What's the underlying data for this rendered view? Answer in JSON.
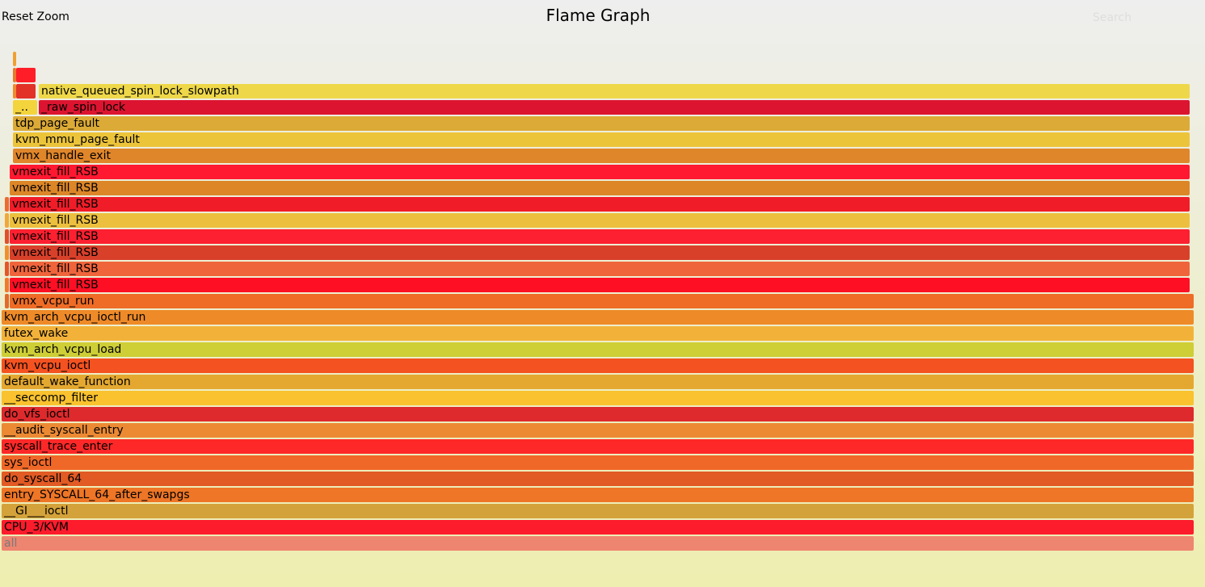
{
  "toolbar": {
    "reset_zoom_label": "Reset Zoom",
    "title": "Flame Graph",
    "search_label": "Search"
  },
  "frames": [
    {
      "name": "all",
      "label": "all",
      "color": "#ee8570"
    },
    {
      "name": "CPU_3/KVM",
      "label": "CPU_3/KVM",
      "color": "#fc1c2c"
    },
    {
      "name": "__GI___ioctl",
      "label": "__GI___ioctl",
      "color": "#d4a23a"
    },
    {
      "name": "entry_SYSCALL_64_after_swapgs",
      "label": "entry_SYSCALL_64_after_swapgs",
      "color": "#ee7626"
    },
    {
      "name": "do_syscall_64",
      "label": "do_syscall_64",
      "color": "#e25a24"
    },
    {
      "name": "sys_ioctl",
      "label": "sys_ioctl",
      "color": "#f06828"
    },
    {
      "name": "syscall_trace_enter",
      "label": "syscall_trace_enter",
      "color": "#ff2828"
    },
    {
      "name": "__audit_syscall_entry",
      "label": "__audit_syscall_entry",
      "color": "#ec8a34"
    },
    {
      "name": "do_vfs_ioctl",
      "label": "do_vfs_ioctl",
      "color": "#de2a2c"
    },
    {
      "name": "__seccomp_filter",
      "label": "__seccomp_filter",
      "color": "#f9c22e"
    },
    {
      "name": "default_wake_function",
      "label": "default_wake_function",
      "color": "#e4a830"
    },
    {
      "name": "kvm_vcpu_ioctl",
      "label": "kvm_vcpu_ioctl",
      "color": "#f45220"
    },
    {
      "name": "kvm_arch_vcpu_load",
      "label": "kvm_arch_vcpu_load",
      "color": "#cece36"
    },
    {
      "name": "futex_wake",
      "label": "futex_wake",
      "color": "#f2b23a"
    },
    {
      "name": "kvm_arch_vcpu_ioctl_run",
      "label": "kvm_arch_vcpu_ioctl_run",
      "color": "#ee8a28"
    },
    {
      "name": "vmx_vcpu_run",
      "label": "vmx_vcpu_run",
      "color": "#ee6c26"
    },
    {
      "name": "vmexit_fill_RSB",
      "label": "vmexit_fill_RSB",
      "color": "#ff0f24"
    },
    {
      "name": "vmexit_fill_RSB",
      "label": "vmexit_fill_RSB",
      "color": "#f0643c"
    },
    {
      "name": "vmexit_fill_RSB",
      "label": "vmexit_fill_RSB",
      "color": "#d8402a"
    },
    {
      "name": "vmexit_fill_RSB",
      "label": "vmexit_fill_RSB",
      "color": "#fc2030"
    },
    {
      "name": "vmexit_fill_RSB",
      "label": "vmexit_fill_RSB",
      "color": "#ecc03e"
    },
    {
      "name": "vmexit_fill_RSB",
      "label": "vmexit_fill_RSB",
      "color": "#f01c28"
    },
    {
      "name": "vmexit_fill_RSB",
      "label": "vmexit_fill_RSB",
      "color": "#dc8628"
    },
    {
      "name": "vmexit_fill_RSB",
      "label": "vmexit_fill_RSB",
      "color": "#ff1830"
    },
    {
      "name": "vmx_handle_exit",
      "label": "vmx_handle_exit",
      "color": "#e0862a"
    },
    {
      "name": "kvm_mmu_page_fault",
      "label": "kvm_mmu_page_fault",
      "color": "#ecc43a"
    },
    {
      "name": "tdp_page_fault",
      "label": "tdp_page_fault",
      "color": "#dcaa36"
    },
    {
      "name": "_raw_spin_lock",
      "label": "_raw_spin_lock",
      "color": "#dc1430"
    },
    {
      "name": "native_queued_spin_lock_slowpath",
      "label": "native_queued_spin_lock_slowpath",
      "color": "#eed84a"
    },
    {
      "name": "_..",
      "label": "_..",
      "color": "#f4d43c"
    },
    {
      "name": "small-frame-1",
      "label": "",
      "color": "#e23228"
    },
    {
      "name": "small-frame-2",
      "label": "",
      "color": "#ff1e28"
    },
    {
      "name": "small-frame-3",
      "label": "",
      "color": "#f0a030"
    },
    {
      "name": "small-frame-4",
      "label": "",
      "color": "#e8782a"
    },
    {
      "name": "small-frame-5",
      "label": "",
      "color": "#f08a2c"
    },
    {
      "name": "small-frame-6",
      "label": "",
      "color": "#e06a2a"
    },
    {
      "name": "small-frame-7",
      "label": "",
      "color": "#f07a2c"
    },
    {
      "name": "small-frame-8",
      "label": "",
      "color": "#e4562a"
    },
    {
      "name": "small-frame-9",
      "label": "",
      "color": "#ee902e"
    },
    {
      "name": "small-frame-10",
      "label": "",
      "color": "#e0502a"
    },
    {
      "name": "small-frame-11",
      "label": "",
      "color": "#f0a83a"
    },
    {
      "name": "small-frame-12",
      "label": "",
      "color": "#ec6c30"
    }
  ]
}
